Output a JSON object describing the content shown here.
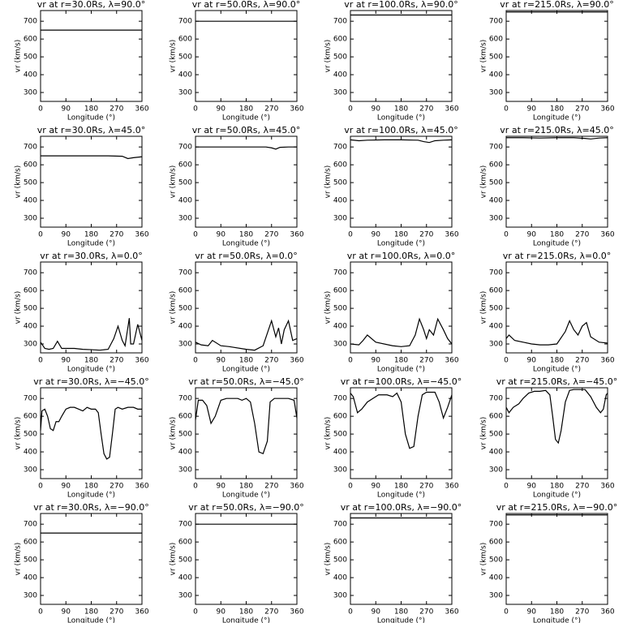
{
  "chart_data": [
    {
      "type": "line",
      "title": "vr at r=30.0Rs, λ=90.0°",
      "xlabel": "Longitude (°)",
      "ylabel": "vr (km/s)",
      "x": [
        0,
        360
      ],
      "values": [
        650,
        650
      ],
      "color": "#000000",
      "xlim": [
        0,
        360
      ],
      "ylim": [
        250,
        760
      ],
      "xticks": [
        0,
        90,
        180,
        270,
        360
      ],
      "yticks": [
        300,
        400,
        500,
        600,
        700
      ]
    },
    {
      "type": "line",
      "title": "vr at r=50.0Rs, λ=90.0°",
      "xlabel": "Longitude (°)",
      "ylabel": "vr (km/s)",
      "x": [
        0,
        360
      ],
      "values": [
        700,
        700
      ],
      "color": "#000000",
      "xlim": [
        0,
        360
      ],
      "ylim": [
        250,
        760
      ],
      "xticks": [
        0,
        90,
        180,
        270,
        360
      ],
      "yticks": [
        300,
        400,
        500,
        600,
        700
      ]
    },
    {
      "type": "line",
      "title": "vr at r=100.0Rs, λ=90.0°",
      "xlabel": "Longitude (°)",
      "ylabel": "vr (km/s)",
      "x": [
        0,
        360
      ],
      "values": [
        735,
        735
      ],
      "color": "#000000",
      "xlim": [
        0,
        360
      ],
      "ylim": [
        250,
        760
      ],
      "xticks": [
        0,
        90,
        180,
        270,
        360
      ],
      "yticks": [
        300,
        400,
        500,
        600,
        700
      ]
    },
    {
      "type": "line",
      "title": "vr at r=215.0Rs, λ=90.0°",
      "xlabel": "Longitude (°)",
      "ylabel": "vr (km/s)",
      "x": [
        0,
        360
      ],
      "values": [
        752,
        752
      ],
      "color": "#000000",
      "xlim": [
        0,
        360
      ],
      "ylim": [
        250,
        760
      ],
      "xticks": [
        0,
        90,
        180,
        270,
        360
      ],
      "yticks": [
        300,
        400,
        500,
        600,
        700
      ]
    },
    {
      "type": "line",
      "title": "vr at r=30.0Rs, λ=45.0°",
      "xlabel": "Longitude (°)",
      "ylabel": "vr (km/s)",
      "x": [
        0,
        60,
        120,
        180,
        240,
        290,
        310,
        330,
        360
      ],
      "values": [
        650,
        650,
        650,
        650,
        650,
        648,
        635,
        640,
        645
      ],
      "color": "#000000",
      "xlim": [
        0,
        360
      ],
      "ylim": [
        250,
        760
      ],
      "xticks": [
        0,
        90,
        180,
        270,
        360
      ],
      "yticks": [
        300,
        400,
        500,
        600,
        700
      ]
    },
    {
      "type": "line",
      "title": "vr at r=50.0Rs, λ=45.0°",
      "xlabel": "Longitude (°)",
      "ylabel": "vr (km/s)",
      "x": [
        0,
        90,
        180,
        250,
        270,
        285,
        300,
        330,
        360
      ],
      "values": [
        700,
        700,
        700,
        700,
        695,
        688,
        698,
        700,
        700
      ],
      "color": "#000000",
      "xlim": [
        0,
        360
      ],
      "ylim": [
        250,
        760
      ],
      "xticks": [
        0,
        90,
        180,
        270,
        360
      ],
      "yticks": [
        300,
        400,
        500,
        600,
        700
      ]
    },
    {
      "type": "line",
      "title": "vr at r=100.0Rs, λ=45.0°",
      "xlabel": "Longitude (°)",
      "ylabel": "vr (km/s)",
      "x": [
        0,
        30,
        60,
        120,
        180,
        240,
        260,
        280,
        300,
        330,
        360
      ],
      "values": [
        740,
        735,
        738,
        740,
        740,
        738,
        730,
        725,
        735,
        738,
        740
      ],
      "color": "#000000",
      "xlim": [
        0,
        360
      ],
      "ylim": [
        250,
        760
      ],
      "xticks": [
        0,
        90,
        180,
        270,
        360
      ],
      "yticks": [
        300,
        400,
        500,
        600,
        700
      ]
    },
    {
      "type": "line",
      "title": "vr at r=215.0Rs, λ=45.0°",
      "xlabel": "Longitude (°)",
      "ylabel": "vr (km/s)",
      "x": [
        0,
        60,
        120,
        180,
        240,
        280,
        300,
        330,
        360
      ],
      "values": [
        752,
        752,
        750,
        752,
        752,
        748,
        745,
        750,
        752
      ],
      "color": "#000000",
      "xlim": [
        0,
        360
      ],
      "ylim": [
        250,
        760
      ],
      "xticks": [
        0,
        90,
        180,
        270,
        360
      ],
      "yticks": [
        300,
        400,
        500,
        600,
        700
      ]
    },
    {
      "type": "line",
      "title": "vr at r=30.0Rs, λ=0.0°",
      "xlabel": "Longitude (°)",
      "ylabel": "vr (km/s)",
      "x": [
        0,
        15,
        30,
        45,
        60,
        75,
        90,
        120,
        150,
        180,
        210,
        240,
        260,
        275,
        290,
        300,
        315,
        320,
        330,
        345,
        360
      ],
      "values": [
        310,
        275,
        270,
        275,
        315,
        275,
        275,
        275,
        270,
        268,
        265,
        270,
        330,
        400,
        320,
        290,
        445,
        300,
        300,
        410,
        320
      ],
      "color": "#000000",
      "xlim": [
        0,
        360
      ],
      "ylim": [
        250,
        760
      ],
      "xticks": [
        0,
        90,
        180,
        270,
        360
      ],
      "yticks": [
        300,
        400,
        500,
        600,
        700
      ]
    },
    {
      "type": "line",
      "title": "vr at r=50.0Rs, λ=0.0°",
      "xlabel": "Longitude (°)",
      "ylabel": "vr (km/s)",
      "x": [
        0,
        20,
        45,
        60,
        90,
        120,
        180,
        210,
        240,
        255,
        270,
        285,
        295,
        305,
        315,
        330,
        345,
        360
      ],
      "values": [
        310,
        295,
        290,
        320,
        290,
        285,
        270,
        265,
        290,
        360,
        430,
        340,
        390,
        300,
        380,
        430,
        320,
        330
      ],
      "color": "#000000",
      "xlim": [
        0,
        360
      ],
      "ylim": [
        250,
        760
      ],
      "xticks": [
        0,
        90,
        180,
        270,
        360
      ],
      "yticks": [
        300,
        400,
        500,
        600,
        700
      ]
    },
    {
      "type": "line",
      "title": "vr at r=100.0Rs, λ=0.0°",
      "xlabel": "Longitude (°)",
      "ylabel": "vr (km/s)",
      "x": [
        0,
        30,
        45,
        60,
        90,
        150,
        180,
        210,
        230,
        245,
        260,
        270,
        280,
        295,
        310,
        330,
        345,
        360
      ],
      "values": [
        300,
        295,
        320,
        350,
        310,
        290,
        285,
        290,
        350,
        440,
        380,
        330,
        380,
        350,
        440,
        380,
        330,
        300
      ],
      "color": "#000000",
      "xlim": [
        0,
        360
      ],
      "ylim": [
        250,
        760
      ],
      "xticks": [
        0,
        90,
        180,
        270,
        360
      ],
      "yticks": [
        300,
        400,
        500,
        600,
        700
      ]
    },
    {
      "type": "line",
      "title": "vr at r=215.0Rs, λ=0.0°",
      "xlabel": "Longitude (°)",
      "ylabel": "vr (km/s)",
      "x": [
        0,
        10,
        30,
        60,
        90,
        120,
        150,
        180,
        210,
        225,
        240,
        255,
        270,
        285,
        300,
        330,
        360
      ],
      "values": [
        330,
        350,
        320,
        310,
        300,
        295,
        295,
        300,
        370,
        430,
        380,
        350,
        400,
        420,
        340,
        310,
        305
      ],
      "color": "#000000",
      "xlim": [
        0,
        360
      ],
      "ylim": [
        250,
        760
      ],
      "xticks": [
        0,
        90,
        180,
        270,
        360
      ],
      "yticks": [
        300,
        400,
        500,
        600,
        700
      ]
    },
    {
      "type": "line",
      "title": "vr at r=30.0Rs, λ=−45.0°",
      "xlabel": "Longitude (°)",
      "ylabel": "vr (km/s)",
      "x": [
        0,
        5,
        15,
        25,
        35,
        45,
        55,
        65,
        75,
        90,
        105,
        120,
        135,
        150,
        165,
        180,
        195,
        205,
        215,
        225,
        235,
        245,
        255,
        265,
        275,
        290,
        310,
        330,
        345,
        360
      ],
      "values": [
        520,
        630,
        640,
        600,
        530,
        520,
        570,
        570,
        600,
        640,
        650,
        650,
        640,
        630,
        650,
        640,
        640,
        620,
        500,
        390,
        360,
        370,
        500,
        640,
        650,
        640,
        650,
        650,
        640,
        640
      ],
      "color": "#000000",
      "xlim": [
        0,
        360
      ],
      "ylim": [
        250,
        760
      ],
      "xticks": [
        0,
        90,
        180,
        270,
        360
      ],
      "yticks": [
        300,
        400,
        500,
        600,
        700
      ]
    },
    {
      "type": "line",
      "title": "vr at r=50.0Rs, λ=−45.0°",
      "xlabel": "Longitude (°)",
      "ylabel": "vr (km/s)",
      "x": [
        0,
        10,
        25,
        40,
        55,
        70,
        90,
        110,
        130,
        150,
        165,
        180,
        195,
        210,
        225,
        240,
        255,
        265,
        280,
        300,
        330,
        350,
        360
      ],
      "values": [
        580,
        690,
        690,
        660,
        560,
        600,
        690,
        700,
        700,
        700,
        690,
        700,
        680,
        560,
        400,
        390,
        460,
        680,
        700,
        700,
        700,
        690,
        590
      ],
      "color": "#000000",
      "xlim": [
        0,
        360
      ],
      "ylim": [
        250,
        760
      ],
      "xticks": [
        0,
        90,
        180,
        270,
        360
      ],
      "yticks": [
        300,
        400,
        500,
        600,
        700
      ]
    },
    {
      "type": "line",
      "title": "vr at r=100.0Rs, λ=−45.0°",
      "xlabel": "Longitude (°)",
      "ylabel": "vr (km/s)",
      "x": [
        0,
        10,
        25,
        40,
        60,
        80,
        100,
        130,
        150,
        165,
        180,
        195,
        210,
        225,
        240,
        255,
        270,
        285,
        300,
        315,
        330,
        345,
        360
      ],
      "values": [
        730,
        710,
        620,
        640,
        680,
        700,
        720,
        720,
        710,
        730,
        680,
        500,
        420,
        430,
        600,
        720,
        735,
        735,
        735,
        680,
        590,
        650,
        720
      ],
      "color": "#000000",
      "xlim": [
        0,
        360
      ],
      "ylim": [
        250,
        760
      ],
      "xticks": [
        0,
        90,
        180,
        270,
        360
      ],
      "yticks": [
        300,
        400,
        500,
        600,
        700
      ]
    },
    {
      "type": "line",
      "title": "vr at r=215.0Rs, λ=−45.0°",
      "xlabel": "Longitude (°)",
      "ylabel": "vr (km/s)",
      "x": [
        0,
        10,
        25,
        45,
        60,
        80,
        100,
        120,
        140,
        155,
        165,
        175,
        185,
        195,
        210,
        225,
        240,
        260,
        280,
        300,
        320,
        335,
        345,
        355,
        360
      ],
      "values": [
        650,
        620,
        650,
        670,
        700,
        730,
        740,
        740,
        745,
        720,
        600,
        470,
        450,
        520,
        680,
        745,
        750,
        750,
        750,
        710,
        650,
        620,
        640,
        720,
        730
      ],
      "color": "#000000",
      "xlim": [
        0,
        360
      ],
      "ylim": [
        250,
        760
      ],
      "xticks": [
        0,
        90,
        180,
        270,
        360
      ],
      "yticks": [
        300,
        400,
        500,
        600,
        700
      ]
    },
    {
      "type": "line",
      "title": "vr at r=30.0Rs, λ=−90.0°",
      "xlabel": "Longitude (°)",
      "ylabel": "vr (km/s)",
      "x": [
        0,
        360
      ],
      "values": [
        650,
        650
      ],
      "color": "#000000",
      "xlim": [
        0,
        360
      ],
      "ylim": [
        250,
        760
      ],
      "xticks": [
        0,
        90,
        180,
        270,
        360
      ],
      "yticks": [
        300,
        400,
        500,
        600,
        700
      ]
    },
    {
      "type": "line",
      "title": "vr at r=50.0Rs, λ=−90.0°",
      "xlabel": "Longitude (°)",
      "ylabel": "vr (km/s)",
      "x": [
        0,
        360
      ],
      "values": [
        700,
        700
      ],
      "color": "#000000",
      "xlim": [
        0,
        360
      ],
      "ylim": [
        250,
        760
      ],
      "xticks": [
        0,
        90,
        180,
        270,
        360
      ],
      "yticks": [
        300,
        400,
        500,
        600,
        700
      ]
    },
    {
      "type": "line",
      "title": "vr at r=100.0Rs, λ=−90.0°",
      "xlabel": "Longitude (°)",
      "ylabel": "vr (km/s)",
      "x": [
        0,
        360
      ],
      "values": [
        735,
        735
      ],
      "color": "#000000",
      "xlim": [
        0,
        360
      ],
      "ylim": [
        250,
        760
      ],
      "xticks": [
        0,
        90,
        180,
        270,
        360
      ],
      "yticks": [
        300,
        400,
        500,
        600,
        700
      ]
    },
    {
      "type": "line",
      "title": "vr at r=215.0Rs, λ=−90.0°",
      "xlabel": "Longitude (°)",
      "ylabel": "vr (km/s)",
      "x": [
        0,
        360
      ],
      "values": [
        752,
        752
      ],
      "color": "#000000",
      "xlim": [
        0,
        360
      ],
      "ylim": [
        250,
        760
      ],
      "xticks": [
        0,
        90,
        180,
        270,
        360
      ],
      "yticks": [
        300,
        400,
        500,
        600,
        700
      ]
    }
  ]
}
